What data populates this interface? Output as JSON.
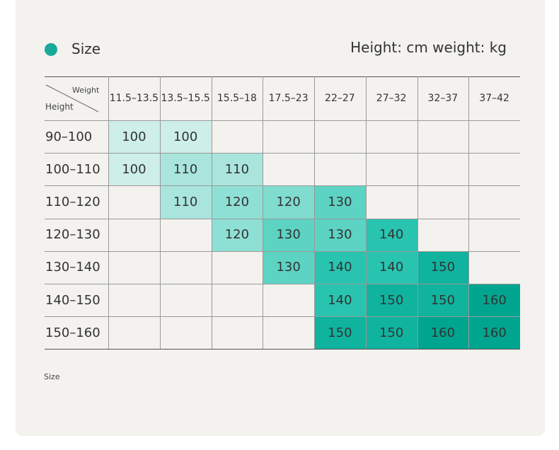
{
  "header": {
    "title": "Size",
    "units": "Height: cm weight: kg"
  },
  "table": {
    "corner_weight": "Weight",
    "corner_height": "Height",
    "columns": [
      "11.5–13.5",
      "13.5–15.5",
      "15.5–18",
      "17.5–23",
      "22–27",
      "27–32",
      "32–37",
      "37–42"
    ],
    "rows": [
      {
        "label": "90–100",
        "cells": [
          "100",
          "100",
          "",
          "",
          "",
          "",
          "",
          ""
        ]
      },
      {
        "label": "100–110",
        "cells": [
          "100",
          "110",
          "110",
          "",
          "",
          "",
          "",
          ""
        ]
      },
      {
        "label": "110–120",
        "cells": [
          "",
          "110",
          "120",
          "120",
          "130",
          "",
          "",
          ""
        ]
      },
      {
        "label": "120–130",
        "cells": [
          "",
          "",
          "120",
          "130",
          "130",
          "140",
          "",
          ""
        ]
      },
      {
        "label": "130–140",
        "cells": [
          "",
          "",
          "",
          "130",
          "140",
          "140",
          "150",
          ""
        ]
      },
      {
        "label": "140–150",
        "cells": [
          "",
          "",
          "",
          "",
          "140",
          "150",
          "150",
          "160"
        ]
      },
      {
        "label": "150–160",
        "cells": [
          "",
          "",
          "",
          "",
          "150",
          "150",
          "160",
          "160"
        ]
      }
    ],
    "fills": [
      [
        "#cdeee9",
        "#cdeee9",
        "",
        "",
        "",
        "",
        "",
        ""
      ],
      [
        "#cdeee9",
        "#a9e5dc",
        "#a9e5dc",
        "",
        "",
        "",
        "",
        ""
      ],
      [
        "",
        "#a9e5dc",
        "#8fe0d4",
        "#7fdccf",
        "#5dd3c3",
        "",
        "",
        ""
      ],
      [
        "",
        "",
        "#8fe0d4",
        "#5dd3c3",
        "#5dd3c3",
        "#28c4b0",
        "",
        ""
      ],
      [
        "",
        "",
        "",
        "#5dd3c3",
        "#28c4b0",
        "#28c4b0",
        "#10b39e",
        ""
      ],
      [
        "",
        "",
        "",
        "",
        "#28c4b0",
        "#10b39e",
        "#10b39e",
        "#00a58f"
      ],
      [
        "",
        "",
        "",
        "",
        "#10b39e",
        "#10b39e",
        "#00a58f",
        "#00a58f"
      ]
    ]
  },
  "footer": {
    "text": "Size"
  }
}
